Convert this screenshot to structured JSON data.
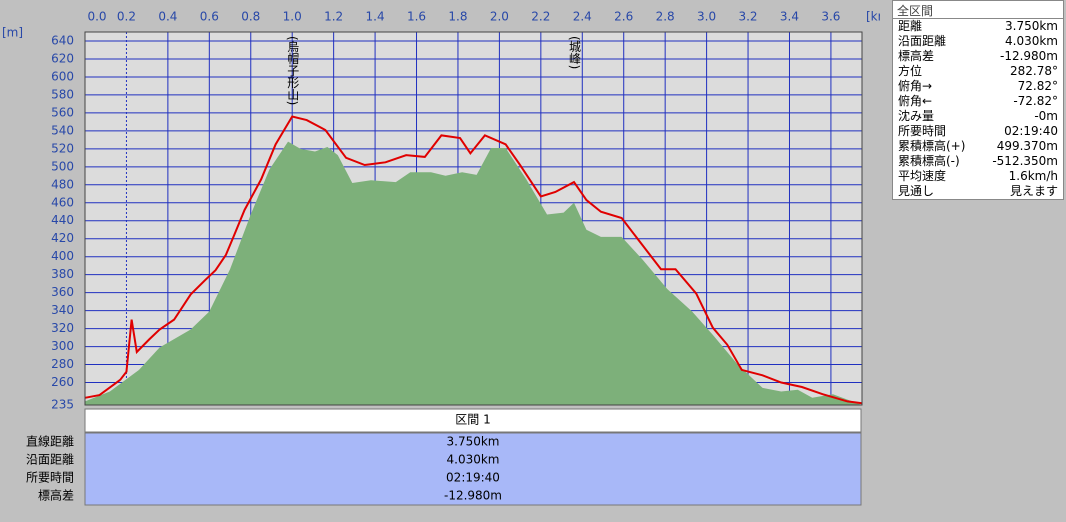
{
  "chart_data": {
    "type": "elevation_profile",
    "x_unit": "[km]",
    "y_unit": "[m]",
    "xlim": [
      0,
      3.75
    ],
    "ylim": [
      235,
      650
    ],
    "xticks": [
      {
        "value": 0,
        "label": "0.0"
      },
      0.2,
      0.4,
      0.6,
      0.8,
      {
        "value": 1,
        "label": "1.0"
      },
      1.2,
      1.4,
      1.6,
      1.8,
      {
        "value": 2,
        "label": "2.0"
      },
      2.2,
      2.4,
      2.6,
      2.8,
      {
        "value": 3,
        "label": "3.0"
      },
      3.2,
      3.4,
      3.6
    ],
    "yticks": [
      235,
      260,
      280,
      300,
      320,
      340,
      360,
      380,
      400,
      420,
      440,
      460,
      480,
      500,
      520,
      540,
      560,
      580,
      600,
      620,
      640
    ],
    "grid": true,
    "series": [
      {
        "kind": "area",
        "color": "#7db07a",
        "x": [
          0,
          0.12,
          0.26,
          0.36,
          0.51,
          0.6,
          0.7,
          0.8,
          0.89,
          0.98,
          1.04,
          1.11,
          1.17,
          1.22,
          1.29,
          1.38,
          1.5,
          1.57,
          1.67,
          1.74,
          1.82,
          1.89,
          1.96,
          2.03,
          2.13,
          2.23,
          2.31,
          2.36,
          2.42,
          2.49,
          2.59,
          2.69,
          2.81,
          2.93,
          3.03,
          3.15,
          3.27,
          3.36,
          3.44,
          3.51,
          3.61,
          3.75
        ],
        "values": [
          239,
          250,
          274,
          299,
          319,
          339,
          386,
          447,
          497,
          528,
          520,
          517,
          522,
          513,
          482,
          485,
          483,
          494,
          494,
          490,
          494,
          491,
          521,
          521,
          486,
          447,
          449,
          460,
          430,
          422,
          422,
          397,
          364,
          339,
          313,
          280,
          254,
          250,
          252,
          243,
          247,
          235
        ]
      },
      {
        "kind": "line",
        "color": "#e00000",
        "x": [
          0,
          0.07,
          0.17,
          0.2,
          0.225,
          0.25,
          0.31,
          0.36,
          0.43,
          0.51,
          0.58,
          0.63,
          0.68,
          0.72,
          0.77,
          0.85,
          0.92,
          1.0,
          1.07,
          1.16,
          1.26,
          1.35,
          1.45,
          1.55,
          1.64,
          1.72,
          1.81,
          1.86,
          1.93,
          2.03,
          2.1,
          2.2,
          2.27,
          2.36,
          2.42,
          2.49,
          2.59,
          2.69,
          2.78,
          2.85,
          2.95,
          3.03,
          3.1,
          3.17,
          3.27,
          3.36,
          3.46,
          3.56,
          3.68,
          3.75
        ],
        "values": [
          243,
          246,
          263,
          272,
          330,
          294,
          308,
          319,
          330,
          358,
          374,
          385,
          402,
          424,
          452,
          486,
          525,
          556,
          552,
          541,
          510,
          502,
          505,
          513,
          511,
          535,
          532,
          515,
          535,
          525,
          502,
          467,
          472,
          483,
          463,
          450,
          443,
          413,
          386,
          386,
          359,
          321,
          302,
          274,
          268,
          260,
          255,
          247,
          239,
          237
        ]
      }
    ],
    "annotations": [
      {
        "text": "(烏帽子形山)",
        "x": 1.0
      },
      {
        "text": "(城峰)",
        "x": 2.36
      }
    ]
  },
  "section_table": {
    "header": "区間 1",
    "rows": [
      [
        "直線距離",
        "3.750km"
      ],
      [
        "沿面距離",
        "4.030km"
      ],
      [
        "所要時間",
        "02:19:40"
      ],
      [
        "標高差",
        "-12.980m"
      ]
    ]
  },
  "summary_panel": {
    "title": "全区間",
    "rows": [
      [
        "距離",
        "3.750km"
      ],
      [
        "沿面距離",
        "4.030km"
      ],
      [
        "標高差",
        "-12.980m"
      ],
      [
        "方位",
        "282.78°"
      ],
      [
        "俯角→",
        "72.82°"
      ],
      [
        "俯角←",
        "-72.82°"
      ],
      [
        "沈み量",
        "-0m"
      ],
      [
        "所要時間",
        "02:19:40"
      ],
      [
        "累積標高(+)",
        "499.370m"
      ],
      [
        "累積標高(-)",
        "-512.350m"
      ],
      [
        "平均速度",
        "1.6km/h"
      ],
      [
        "見通し",
        "見えます"
      ]
    ]
  }
}
